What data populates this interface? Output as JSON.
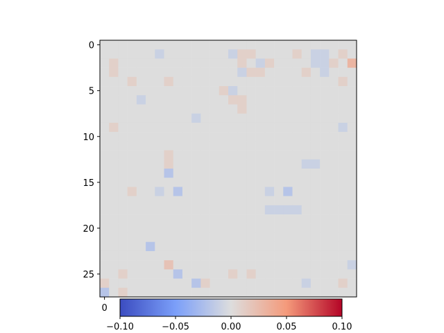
{
  "chart_data": {
    "type": "heatmap",
    "title": "",
    "xlabel": "",
    "ylabel": "",
    "x_ticks": [
      0
    ],
    "x_tick_labels": [
      "0"
    ],
    "y_ticks": [
      0,
      5,
      10,
      15,
      20,
      25
    ],
    "y_tick_labels": [
      "0",
      "5",
      "10",
      "15",
      "20",
      "25"
    ],
    "rows": 28,
    "cols": 28,
    "value_range": [
      -0.1,
      0.1
    ],
    "colormap": "coolwarm",
    "colorbar": {
      "orientation": "horizontal",
      "placement": "bottom",
      "ticks": [
        -0.1,
        -0.05,
        0.0,
        0.05,
        0.1
      ],
      "tick_labels": [
        "−0.10",
        "−0.05",
        "0.00",
        "0.05",
        "0.10"
      ]
    },
    "values": [
      [
        0.0,
        0.0,
        0.0,
        0.0,
        0.0,
        0.0,
        0.0,
        0.0,
        0.0,
        0.0,
        0.0,
        0.0,
        0.0,
        0.0,
        0.0,
        0.0,
        0.0,
        0.0,
        0.0,
        0.0,
        0.0,
        0.0,
        0.0,
        0.0,
        0.0,
        0.0,
        0.0,
        0.0
      ],
      [
        0.0,
        0.0,
        0.0,
        0.0,
        0.0,
        0.0,
        -0.01,
        0.0,
        0.0,
        0.0,
        0.0,
        0.0,
        0.0,
        0.0,
        -0.01,
        0.01,
        0.01,
        0.0,
        0.0,
        0.0,
        0.0,
        0.01,
        0.0,
        -0.01,
        -0.01,
        0.0,
        0.01,
        0.0
      ],
      [
        0.0,
        0.01,
        0.0,
        0.0,
        0.0,
        0.0,
        0.0,
        0.0,
        0.0,
        0.0,
        0.0,
        0.0,
        0.0,
        0.0,
        0.0,
        0.01,
        0.0,
        -0.01,
        0.01,
        0.0,
        0.0,
        0.0,
        0.0,
        -0.01,
        -0.01,
        0.01,
        0.0,
        0.03
      ],
      [
        0.0,
        0.01,
        0.0,
        0.0,
        0.0,
        0.0,
        0.0,
        0.0,
        0.0,
        0.0,
        0.0,
        0.0,
        0.0,
        0.0,
        0.0,
        -0.01,
        0.01,
        0.01,
        0.0,
        0.0,
        0.0,
        0.0,
        0.01,
        0.0,
        -0.01,
        0.0,
        0.0,
        0.0
      ],
      [
        0.0,
        0.0,
        0.0,
        0.01,
        0.0,
        0.0,
        0.0,
        0.01,
        0.0,
        0.0,
        0.0,
        0.0,
        0.0,
        0.0,
        0.0,
        0.0,
        0.0,
        0.0,
        0.0,
        0.0,
        0.0,
        0.0,
        0.0,
        0.0,
        0.0,
        0.0,
        0.01,
        0.0
      ],
      [
        0.0,
        0.0,
        0.0,
        0.0,
        0.0,
        0.0,
        0.0,
        0.0,
        0.0,
        0.0,
        0.0,
        0.0,
        0.0,
        0.01,
        -0.01,
        0.0,
        0.0,
        0.0,
        0.0,
        0.0,
        0.0,
        0.0,
        0.0,
        0.0,
        0.0,
        0.0,
        0.0,
        0.0
      ],
      [
        0.0,
        0.0,
        0.0,
        0.0,
        -0.01,
        0.0,
        0.0,
        0.0,
        0.0,
        0.0,
        0.0,
        0.0,
        0.0,
        0.0,
        0.01,
        0.01,
        0.0,
        0.0,
        0.0,
        0.0,
        0.0,
        0.0,
        0.0,
        0.0,
        0.0,
        0.0,
        0.0,
        0.0
      ],
      [
        0.0,
        0.0,
        0.0,
        0.0,
        0.0,
        0.0,
        0.0,
        0.0,
        0.0,
        0.0,
        0.0,
        0.0,
        0.0,
        0.0,
        0.0,
        0.01,
        0.0,
        0.0,
        0.0,
        0.0,
        0.0,
        0.0,
        0.0,
        0.0,
        0.0,
        0.0,
        0.0,
        0.0
      ],
      [
        0.0,
        0.0,
        0.0,
        0.0,
        0.0,
        0.0,
        0.0,
        0.0,
        0.0,
        0.0,
        -0.01,
        0.0,
        0.0,
        0.0,
        0.0,
        0.0,
        0.0,
        0.0,
        0.0,
        0.0,
        0.0,
        0.0,
        0.0,
        0.0,
        0.0,
        0.0,
        0.0,
        0.0
      ],
      [
        0.0,
        0.01,
        0.0,
        0.0,
        0.0,
        0.0,
        0.0,
        0.0,
        0.0,
        0.0,
        0.0,
        0.0,
        0.0,
        0.0,
        0.0,
        0.0,
        0.0,
        0.0,
        0.0,
        0.0,
        0.0,
        0.0,
        0.0,
        0.0,
        0.0,
        0.0,
        -0.01,
        0.0
      ],
      [
        0.0,
        0.0,
        0.0,
        0.0,
        0.0,
        0.0,
        0.0,
        0.0,
        0.0,
        0.0,
        0.0,
        0.0,
        0.0,
        0.0,
        0.0,
        0.0,
        0.0,
        0.0,
        0.0,
        0.0,
        0.0,
        0.0,
        0.0,
        0.0,
        0.0,
        0.0,
        0.0,
        0.0
      ],
      [
        0.0,
        0.0,
        0.0,
        0.0,
        0.0,
        0.0,
        0.0,
        0.0,
        0.0,
        0.0,
        0.0,
        0.0,
        0.0,
        0.0,
        0.0,
        0.0,
        0.0,
        0.0,
        0.0,
        0.0,
        0.0,
        0.0,
        0.0,
        0.0,
        0.0,
        0.0,
        0.0,
        0.0
      ],
      [
        0.0,
        0.0,
        0.0,
        0.0,
        0.0,
        0.0,
        0.0,
        0.01,
        0.0,
        0.0,
        0.0,
        0.0,
        0.0,
        0.0,
        0.0,
        0.0,
        0.0,
        0.0,
        0.0,
        0.0,
        0.0,
        0.0,
        0.0,
        0.0,
        0.0,
        0.0,
        0.0,
        0.0
      ],
      [
        0.0,
        0.0,
        0.0,
        0.0,
        0.0,
        0.0,
        0.0,
        0.01,
        0.0,
        0.0,
        0.0,
        0.0,
        0.0,
        0.0,
        0.0,
        0.0,
        0.0,
        0.0,
        0.0,
        0.0,
        0.0,
        0.0,
        -0.01,
        -0.01,
        0.0,
        0.0,
        0.0,
        0.0
      ],
      [
        0.0,
        0.0,
        0.0,
        0.0,
        0.0,
        0.0,
        0.0,
        -0.02,
        0.0,
        0.0,
        0.0,
        0.0,
        0.0,
        0.0,
        0.0,
        0.0,
        0.0,
        0.0,
        0.0,
        0.0,
        0.0,
        0.0,
        0.0,
        0.0,
        0.0,
        0.0,
        0.0,
        0.0
      ],
      [
        0.0,
        0.0,
        0.0,
        0.0,
        0.0,
        0.0,
        0.0,
        0.0,
        0.0,
        0.0,
        0.0,
        0.0,
        0.0,
        0.0,
        0.0,
        0.0,
        0.0,
        0.0,
        0.0,
        0.0,
        0.0,
        0.0,
        0.0,
        0.0,
        0.0,
        0.0,
        0.0,
        0.0
      ],
      [
        0.0,
        0.0,
        0.0,
        0.01,
        0.0,
        0.0,
        -0.01,
        0.0,
        -0.02,
        0.0,
        0.0,
        0.0,
        0.0,
        0.0,
        0.0,
        0.0,
        0.0,
        0.0,
        -0.01,
        0.0,
        -0.02,
        0.0,
        0.0,
        0.0,
        0.0,
        0.0,
        0.0,
        0.0
      ],
      [
        0.0,
        0.0,
        0.0,
        0.0,
        0.0,
        0.0,
        0.0,
        0.0,
        0.0,
        0.0,
        0.0,
        0.0,
        0.0,
        0.0,
        0.0,
        0.0,
        0.0,
        0.0,
        0.0,
        0.0,
        0.0,
        0.0,
        0.0,
        0.0,
        0.0,
        0.0,
        0.0,
        0.0
      ],
      [
        0.0,
        0.0,
        0.0,
        0.0,
        0.0,
        0.0,
        0.0,
        0.0,
        0.0,
        0.0,
        0.0,
        0.0,
        0.0,
        0.0,
        0.0,
        0.0,
        0.0,
        0.0,
        -0.01,
        -0.01,
        -0.01,
        -0.01,
        0.0,
        0.0,
        0.0,
        0.0,
        0.0,
        0.0
      ],
      [
        0.0,
        0.0,
        0.0,
        0.0,
        0.0,
        0.0,
        0.0,
        0.0,
        0.0,
        0.0,
        0.0,
        0.0,
        0.0,
        0.0,
        0.0,
        0.0,
        0.0,
        0.0,
        0.0,
        0.0,
        0.0,
        0.0,
        0.0,
        0.0,
        0.0,
        0.0,
        0.0,
        0.0
      ],
      [
        0.0,
        0.0,
        0.0,
        0.0,
        0.0,
        0.0,
        0.0,
        0.0,
        0.0,
        0.0,
        0.0,
        0.0,
        0.0,
        0.0,
        0.0,
        0.0,
        0.0,
        0.0,
        0.0,
        0.0,
        0.0,
        0.0,
        0.0,
        0.0,
        0.0,
        0.0,
        0.0,
        0.0
      ],
      [
        0.0,
        0.0,
        0.0,
        0.0,
        0.0,
        0.0,
        0.0,
        0.0,
        0.0,
        0.0,
        0.0,
        0.0,
        0.0,
        0.0,
        0.0,
        0.0,
        0.0,
        0.0,
        0.0,
        0.0,
        0.0,
        0.0,
        0.0,
        0.0,
        0.0,
        0.0,
        0.0,
        0.0
      ],
      [
        0.0,
        0.0,
        0.0,
        0.0,
        0.0,
        -0.02,
        0.0,
        0.0,
        0.0,
        0.0,
        0.0,
        0.0,
        0.0,
        0.0,
        0.0,
        0.0,
        0.0,
        0.0,
        0.0,
        0.0,
        0.0,
        0.0,
        0.0,
        0.0,
        0.0,
        0.0,
        0.0,
        0.0
      ],
      [
        0.0,
        0.0,
        0.0,
        0.0,
        0.0,
        0.0,
        0.0,
        0.0,
        0.0,
        0.0,
        0.0,
        0.0,
        0.0,
        0.0,
        0.0,
        0.0,
        0.0,
        0.0,
        0.0,
        0.0,
        0.0,
        0.0,
        0.0,
        0.0,
        0.0,
        0.0,
        0.0,
        0.0
      ],
      [
        0.0,
        0.0,
        0.0,
        0.0,
        0.0,
        0.0,
        0.0,
        0.02,
        0.0,
        0.0,
        0.0,
        0.0,
        0.0,
        0.0,
        0.0,
        0.0,
        0.0,
        0.0,
        0.0,
        0.0,
        0.0,
        0.0,
        0.0,
        0.0,
        0.0,
        0.0,
        0.0,
        -0.01
      ],
      [
        0.0,
        0.0,
        0.01,
        0.0,
        0.0,
        0.0,
        0.0,
        0.0,
        -0.02,
        0.0,
        0.0,
        0.0,
        0.0,
        0.0,
        0.01,
        0.0,
        0.01,
        0.0,
        0.0,
        0.0,
        0.0,
        0.0,
        0.0,
        0.0,
        0.0,
        0.0,
        0.0,
        0.0
      ],
      [
        0.01,
        0.0,
        0.0,
        0.0,
        0.0,
        0.0,
        0.0,
        0.0,
        0.0,
        0.0,
        -0.02,
        0.01,
        0.0,
        0.0,
        0.0,
        0.0,
        0.0,
        0.0,
        0.0,
        0.0,
        0.0,
        0.0,
        -0.01,
        0.0,
        0.0,
        0.0,
        0.01,
        0.0
      ],
      [
        -0.02,
        0.0,
        0.01,
        0.0,
        0.0,
        0.0,
        0.0,
        0.0,
        0.0,
        0.0,
        0.0,
        0.0,
        0.0,
        0.0,
        0.0,
        0.0,
        0.0,
        0.0,
        0.0,
        0.0,
        0.0,
        0.0,
        0.0,
        0.0,
        0.0,
        0.0,
        0.0,
        0.0
      ]
    ]
  }
}
